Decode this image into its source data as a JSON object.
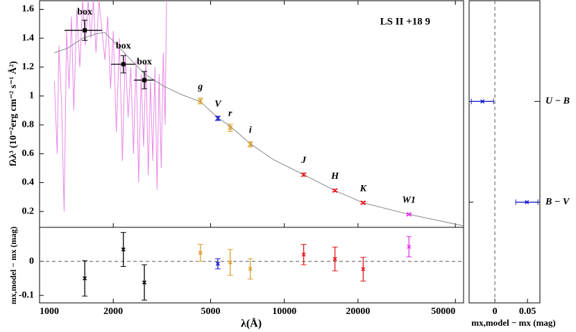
{
  "chart_data": [
    {
      "type": "sed",
      "ylabel": "fλλ³ (10⁻²erg cm⁻² s⁻¹ Å²)",
      "annotation": "LS II +18 9",
      "xscale": "log",
      "xlim": [
        1000,
        54000
      ],
      "ylim": [
        0.09,
        1.66
      ],
      "yticks": [
        0.2,
        0.4,
        0.6,
        0.8,
        1,
        1.2,
        1.4,
        1.6
      ],
      "spectrum": {
        "color": "#e887e8",
        "x": [
          1150,
          1180,
          1200,
          1230,
          1260,
          1290,
          1320,
          1350,
          1380,
          1420,
          1460,
          1500,
          1540,
          1580,
          1620,
          1660,
          1700,
          1750,
          1800,
          1850,
          1900,
          1950,
          2000,
          2060,
          2120,
          2180,
          2240,
          2300,
          2360,
          2420,
          2480,
          2540,
          2600,
          2660,
          2720,
          2780,
          2840,
          2900,
          2960,
          3020,
          3080,
          3140,
          3200,
          3260,
          3300
        ],
        "values": [
          1.1,
          0.6,
          1.35,
          0.95,
          0.2,
          1.45,
          1.05,
          1.55,
          0.9,
          1.6,
          1.2,
          1.66,
          1.35,
          1.66,
          1.4,
          1.66,
          1.3,
          1.66,
          1.45,
          1.25,
          1.55,
          1.05,
          1.45,
          0.75,
          1.4,
          0.55,
          1.3,
          0.85,
          1.2,
          0.6,
          1.25,
          0.4,
          1.15,
          0.65,
          1.25,
          0.45,
          1.1,
          0.55,
          1.2,
          0.35,
          1.15,
          0.5,
          1.3,
          0.8,
          1.66
        ]
      },
      "model": {
        "color": "#888888",
        "x": [
          1150,
          1300,
          1500,
          1700,
          1850,
          2000,
          2300,
          2700,
          3200,
          3800,
          4540,
          5350,
          6010,
          7260,
          9000,
          12000,
          16100,
          21000,
          32300,
          54000
        ],
        "values": [
          1.3,
          1.33,
          1.4,
          1.43,
          1.44,
          1.38,
          1.27,
          1.15,
          1.07,
          1.01,
          0.96,
          0.85,
          0.79,
          0.67,
          0.56,
          0.455,
          0.345,
          0.26,
          0.18,
          0.1
        ]
      },
      "points": {
        "labels": [
          "box",
          "box",
          "box",
          "g",
          "V",
          "r",
          "i",
          "J",
          "H",
          "K",
          "W1"
        ],
        "colors": [
          "#000000",
          "#000000",
          "#000000",
          "#daa030",
          "#1c1cd0",
          "#daa030",
          "#daa030",
          "#e8141c",
          "#e8141c",
          "#e8141c",
          "#e632e6"
        ],
        "x": [
          1530,
          2200,
          2680,
          4540,
          5350,
          6010,
          7260,
          12000,
          16100,
          21000,
          32300
        ],
        "values": [
          1.455,
          1.22,
          1.11,
          0.965,
          0.845,
          0.78,
          0.665,
          0.455,
          0.345,
          0.26,
          0.18
        ],
        "y_err": [
          0.07,
          0.06,
          0.06,
          0.02,
          0.015,
          0.025,
          0.018,
          0.01,
          0.008,
          0.007,
          0.005
        ],
        "x_lo": [
          1265,
          1958,
          2430,
          null,
          null,
          null,
          null,
          null,
          null,
          null,
          null
        ],
        "x_hi": [
          1800,
          2460,
          2935,
          null,
          null,
          null,
          null,
          null,
          null,
          null,
          null
        ]
      }
    },
    {
      "type": "residual",
      "xlabel": "λ(Å)",
      "ylabel": "mx,model − mx (mag)",
      "xscale": "log",
      "xlim": [
        1000,
        54000
      ],
      "xticks": [
        1000,
        2000,
        5000,
        10000,
        20000,
        50000
      ],
      "ylim": [
        -0.122,
        0.1
      ],
      "yticks": [
        -0.1,
        0
      ],
      "reference_line": 0,
      "points": {
        "colors": [
          "#000000",
          "#000000",
          "#000000",
          "#daa030",
          "#1c1cd0",
          "#daa030",
          "#daa030",
          "#e8141c",
          "#e8141c",
          "#e8141c",
          "#e632e6"
        ],
        "x": [
          1530,
          2200,
          2680,
          4540,
          5350,
          6010,
          7260,
          12000,
          16100,
          21000,
          32300
        ],
        "values": [
          -0.05,
          0.035,
          -0.062,
          0.025,
          -0.007,
          -0.003,
          -0.022,
          0.02,
          0.007,
          -0.023,
          0.043
        ],
        "y_err": [
          0.052,
          0.05,
          0.052,
          0.025,
          0.015,
          0.038,
          0.03,
          0.03,
          0.035,
          0.035,
          0.03
        ]
      }
    },
    {
      "type": "color-residual",
      "xlabel": "mx,model − mx (mag)",
      "xlim": [
        -0.0394,
        0.069
      ],
      "xticks": [
        0,
        0.05
      ],
      "reference_line": 0,
      "categories": [
        "U − B",
        "B − V"
      ],
      "color": "#1c1cd0",
      "values": [
        -0.019,
        0.049
      ],
      "x_err": [
        0.017,
        0.017
      ]
    }
  ]
}
